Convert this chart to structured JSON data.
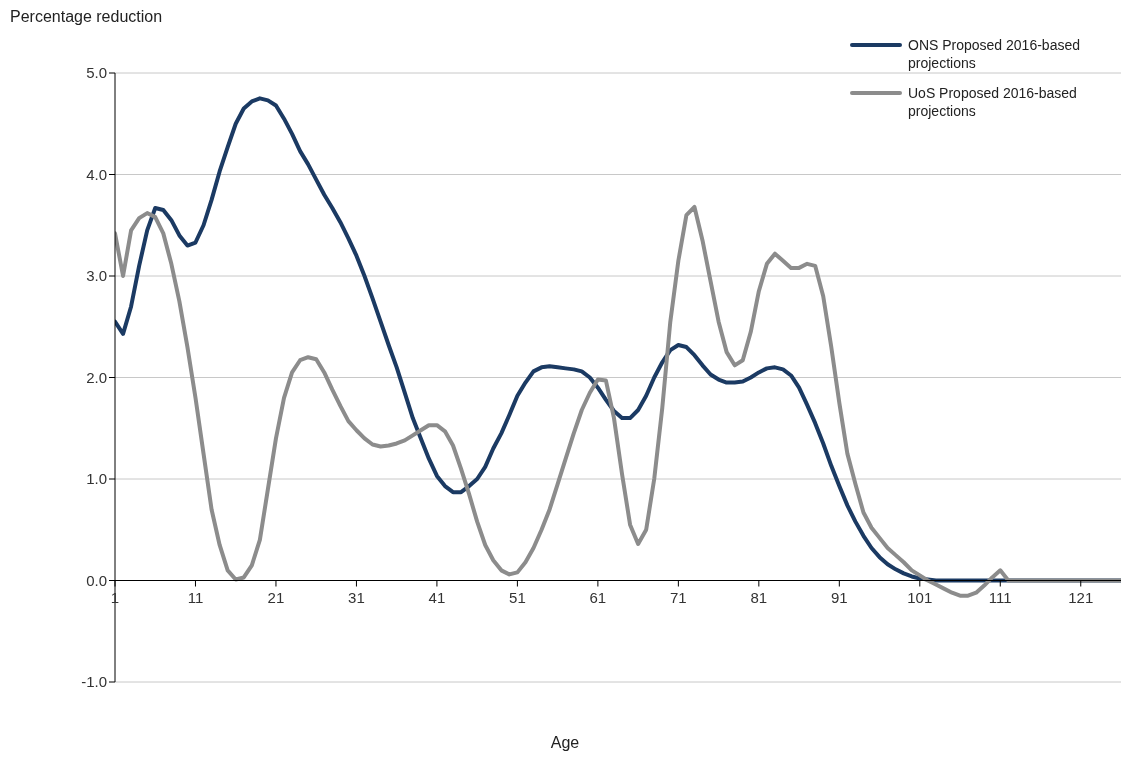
{
  "chart_data": {
    "type": "line",
    "ylabel": "Percentage reduction",
    "xlabel": "Age",
    "xlim": [
      1,
      126
    ],
    "xticks": [
      1,
      11,
      21,
      31,
      41,
      51,
      61,
      71,
      81,
      91,
      101,
      111,
      121
    ],
    "ylim": [
      -1,
      5
    ],
    "yticks": [
      {
        "value": -1,
        "label": "-1.0"
      },
      {
        "value": 0,
        "label": "0.0"
      },
      {
        "value": 1,
        "label": "1.0"
      },
      {
        "value": 2,
        "label": "2.0"
      },
      {
        "value": 3,
        "label": "3.0"
      },
      {
        "value": 4,
        "label": "4.0"
      },
      {
        "value": 5,
        "label": "5.0"
      }
    ],
    "grid": "y",
    "legend": "top right",
    "marker": "none",
    "line_style": "solid",
    "x": [
      1,
      2,
      3,
      4,
      5,
      6,
      7,
      8,
      9,
      10,
      11,
      12,
      13,
      14,
      15,
      16,
      17,
      18,
      19,
      20,
      21,
      22,
      23,
      24,
      25,
      26,
      27,
      28,
      29,
      30,
      31,
      32,
      33,
      34,
      35,
      36,
      37,
      38,
      39,
      40,
      41,
      42,
      43,
      44,
      45,
      46,
      47,
      48,
      49,
      50,
      51,
      52,
      53,
      54,
      55,
      56,
      57,
      58,
      59,
      60,
      61,
      62,
      63,
      64,
      65,
      66,
      67,
      68,
      69,
      70,
      71,
      72,
      73,
      74,
      75,
      76,
      77,
      78,
      79,
      80,
      81,
      82,
      83,
      84,
      85,
      86,
      87,
      88,
      89,
      90,
      91,
      92,
      93,
      94,
      95,
      96,
      97,
      98,
      99,
      100,
      101,
      102,
      103,
      104,
      105,
      106,
      107,
      108,
      109,
      110,
      111,
      112,
      113,
      114,
      115,
      116,
      117,
      118,
      119,
      120,
      121,
      122,
      123,
      124,
      125,
      126
    ],
    "series": [
      {
        "name": "ONS Proposed 2016-based projections",
        "color": "#1b3a63",
        "values": [
          2.55,
          2.43,
          2.7,
          3.1,
          3.45,
          3.67,
          3.65,
          3.55,
          3.4,
          3.3,
          3.33,
          3.5,
          3.75,
          4.03,
          4.27,
          4.5,
          4.65,
          4.72,
          4.75,
          4.73,
          4.68,
          4.55,
          4.4,
          4.23,
          4.1,
          3.95,
          3.8,
          3.67,
          3.53,
          3.37,
          3.2,
          3.0,
          2.78,
          2.55,
          2.32,
          2.1,
          1.85,
          1.6,
          1.4,
          1.2,
          1.03,
          0.93,
          0.87,
          0.87,
          0.93,
          1.0,
          1.12,
          1.3,
          1.45,
          1.63,
          1.82,
          1.95,
          2.06,
          2.1,
          2.11,
          2.1,
          2.09,
          2.08,
          2.06,
          2.0,
          1.9,
          1.78,
          1.67,
          1.6,
          1.6,
          1.68,
          1.82,
          2.0,
          2.15,
          2.27,
          2.32,
          2.3,
          2.22,
          2.12,
          2.03,
          1.98,
          1.95,
          1.95,
          1.96,
          2.0,
          2.05,
          2.09,
          2.1,
          2.08,
          2.02,
          1.9,
          1.73,
          1.55,
          1.35,
          1.13,
          0.93,
          0.74,
          0.58,
          0.44,
          0.32,
          0.23,
          0.16,
          0.11,
          0.07,
          0.04,
          0.02,
          0.01,
          0,
          0,
          0,
          0,
          0,
          0,
          0,
          0,
          0,
          0,
          0,
          0,
          0,
          0,
          0,
          0,
          0,
          0,
          0,
          0,
          0,
          0,
          0,
          0
        ]
      },
      {
        "name": "UoS Proposed 2016-based projections",
        "color": "#8c8c8c",
        "values": [
          3.42,
          3.0,
          3.45,
          3.57,
          3.62,
          3.58,
          3.42,
          3.12,
          2.75,
          2.3,
          1.8,
          1.25,
          0.7,
          0.35,
          0.1,
          0.01,
          0.03,
          0.15,
          0.4,
          0.9,
          1.4,
          1.8,
          2.05,
          2.17,
          2.2,
          2.18,
          2.05,
          1.88,
          1.72,
          1.57,
          1.48,
          1.4,
          1.34,
          1.32,
          1.33,
          1.35,
          1.38,
          1.43,
          1.48,
          1.53,
          1.53,
          1.47,
          1.33,
          1.1,
          0.85,
          0.58,
          0.35,
          0.2,
          0.1,
          0.06,
          0.08,
          0.18,
          0.32,
          0.5,
          0.7,
          0.95,
          1.2,
          1.45,
          1.68,
          1.85,
          1.98,
          1.97,
          1.6,
          1.05,
          0.55,
          0.36,
          0.5,
          1.0,
          1.7,
          2.55,
          3.15,
          3.6,
          3.68,
          3.35,
          2.95,
          2.55,
          2.25,
          2.12,
          2.17,
          2.45,
          2.85,
          3.12,
          3.22,
          3.15,
          3.08,
          3.08,
          3.12,
          3.1,
          2.8,
          2.3,
          1.75,
          1.25,
          0.95,
          0.67,
          0.52,
          0.42,
          0.32,
          0.25,
          0.18,
          0.1,
          0.05,
          0.0,
          -0.04,
          -0.08,
          -0.12,
          -0.15,
          -0.15,
          -0.12,
          -0.05,
          0.03,
          0.1,
          0.0,
          0,
          0,
          0,
          0,
          0,
          0,
          0,
          0,
          0,
          0,
          0,
          0,
          0,
          0
        ]
      }
    ]
  }
}
